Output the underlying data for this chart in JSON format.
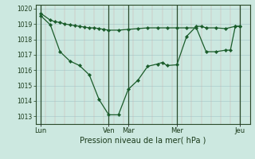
{
  "xlabel": "Pression niveau de la mer( hPa )",
  "background_color": "#cce8e0",
  "plot_bg_color": "#cce8e0",
  "grid_color": "#aacccc",
  "line_color": "#1a5c2a",
  "marker_color": "#1a5c2a",
  "ylim": [
    1012.5,
    1020.25
  ],
  "yticks": [
    1013,
    1014,
    1015,
    1016,
    1017,
    1018,
    1019,
    1020
  ],
  "xlim": [
    0,
    22
  ],
  "day_tick_positions": [
    0.5,
    7.5,
    9.5,
    14.5,
    21.0
  ],
  "day_labels": [
    "Lun",
    "Ven",
    "Mar",
    "Mer",
    "Jeu"
  ],
  "day_vline_positions": [
    0.5,
    7.5,
    9.5,
    14.5,
    21.0
  ],
  "series1_x": [
    0.5,
    1.5,
    2.5,
    3.5,
    4.5,
    5.5,
    6.5,
    7.5,
    8.5,
    9.5,
    10.5,
    11.5,
    12.5,
    13.0,
    13.5,
    14.5,
    15.5,
    16.5,
    17.0,
    17.5,
    18.5,
    19.5,
    20.5,
    21.0
  ],
  "series1_y": [
    1019.55,
    1018.95,
    1017.2,
    1016.6,
    1016.3,
    1015.7,
    1014.1,
    1013.1,
    1013.1,
    1014.75,
    1015.35,
    1016.25,
    1016.4,
    1016.5,
    1016.3,
    1016.35,
    1018.2,
    1018.85,
    1018.85,
    1018.75,
    1018.75,
    1018.7,
    1018.85,
    1018.85
  ],
  "series2_x": [
    0.5,
    1.5,
    2.0,
    2.5,
    3.0,
    3.5,
    4.0,
    4.5,
    5.0,
    5.5,
    6.0,
    6.5,
    7.0,
    7.5,
    8.5,
    9.5,
    10.5,
    11.5,
    12.5,
    13.5,
    14.5,
    15.5,
    16.5,
    17.5,
    18.5,
    19.5,
    20.0,
    20.5,
    21.0
  ],
  "series2_y": [
    1019.7,
    1019.25,
    1019.15,
    1019.1,
    1019.0,
    1018.95,
    1018.9,
    1018.85,
    1018.8,
    1018.75,
    1018.75,
    1018.7,
    1018.65,
    1018.6,
    1018.6,
    1018.65,
    1018.7,
    1018.75,
    1018.75,
    1018.75,
    1018.75,
    1018.75,
    1018.75,
    1017.2,
    1017.2,
    1017.3,
    1017.3,
    1018.85,
    1018.85
  ]
}
